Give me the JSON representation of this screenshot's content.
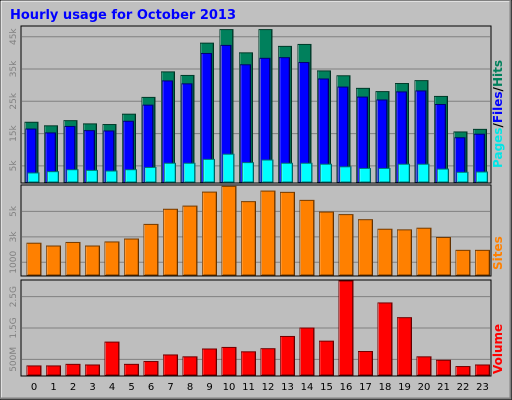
{
  "title": "Hourly usage for October 2013",
  "colors": {
    "background": "#c0c0c0",
    "panel": "#bebebe",
    "title": "#0000ff",
    "hits": "#00805c",
    "files": "#0000ff",
    "pages": "#00ffff",
    "sites": "#ff8000",
    "volume": "#ff0000",
    "axis_text": "#808080"
  },
  "chart_data": [
    {
      "type": "bar",
      "panel": "hits-files-pages",
      "categories": [
        "0",
        "1",
        "2",
        "3",
        "4",
        "5",
        "6",
        "7",
        "8",
        "9",
        "10",
        "11",
        "12",
        "13",
        "14",
        "15",
        "16",
        "17",
        "18",
        "19",
        "20",
        "21",
        "22",
        "23"
      ],
      "series": [
        {
          "name": "Hits",
          "values": [
            18500,
            17400,
            19000,
            18000,
            17800,
            21000,
            26200,
            34100,
            33000,
            43000,
            47200,
            40000,
            47200,
            42000,
            42600,
            34400,
            32900,
            29000,
            28000,
            30500,
            31400,
            26500,
            15500,
            16300
          ]
        },
        {
          "name": "Files",
          "values": [
            16400,
            15200,
            17200,
            15900,
            15800,
            18800,
            23800,
            31300,
            30400,
            39800,
            42300,
            36300,
            38300,
            38500,
            37000,
            31900,
            29400,
            26300,
            25400,
            27900,
            28200,
            24000,
            13700,
            14800
          ]
        },
        {
          "name": "Pages",
          "values": [
            2800,
            3200,
            3800,
            3600,
            3400,
            3800,
            4500,
            5800,
            5800,
            7000,
            8600,
            6000,
            6800,
            5800,
            5800,
            5500,
            4700,
            4200,
            4200,
            5500,
            5500,
            4000,
            3000,
            3100
          ]
        }
      ],
      "ylabel": "Pages / Files / Hits",
      "ylabel_parts": [
        "Pages",
        "/",
        "Files",
        "/",
        "Hits"
      ],
      "ticks": [
        {
          "label": "5k",
          "value": 5000
        },
        {
          "label": "15k",
          "value": 15000
        },
        {
          "label": "25k",
          "value": 25000
        },
        {
          "label": "35k",
          "value": 35000
        },
        {
          "label": "45k",
          "value": 45000
        }
      ],
      "ylim": [
        0,
        48000
      ]
    },
    {
      "type": "bar",
      "panel": "sites",
      "categories": [
        "0",
        "1",
        "2",
        "3",
        "4",
        "5",
        "6",
        "7",
        "8",
        "9",
        "10",
        "11",
        "12",
        "13",
        "14",
        "15",
        "16",
        "17",
        "18",
        "19",
        "20",
        "21",
        "22",
        "23"
      ],
      "series": [
        {
          "name": "Sites",
          "values": [
            2500,
            2280,
            2560,
            2280,
            2600,
            2830,
            3980,
            5170,
            5420,
            6520,
            6970,
            5770,
            6600,
            6500,
            5870,
            4950,
            4750,
            4350,
            3600,
            3550,
            3680,
            2950,
            1940,
            1940
          ]
        }
      ],
      "ylabel": "Sites",
      "ticks": [
        {
          "label": "1000",
          "value": 1000
        },
        {
          "label": "3k",
          "value": 3000
        },
        {
          "label": "5k",
          "value": 5000
        }
      ],
      "ylim": [
        0,
        7000
      ]
    },
    {
      "type": "bar",
      "panel": "volume",
      "categories": [
        "0",
        "1",
        "2",
        "3",
        "4",
        "5",
        "6",
        "7",
        "8",
        "9",
        "10",
        "11",
        "12",
        "13",
        "14",
        "15",
        "16",
        "17",
        "18",
        "19",
        "20",
        "21",
        "22",
        "23"
      ],
      "series": [
        {
          "name": "Volume",
          "values": [
            290,
            290,
            340,
            320,
            1050,
            340,
            430,
            640,
            580,
            830,
            880,
            740,
            840,
            1230,
            1500,
            1080,
            3000,
            750,
            2300,
            1830,
            580,
            470,
            270,
            320
          ]
        }
      ],
      "ylabel": "Volume",
      "ticks": [
        {
          "label": "500M",
          "value": 500
        },
        {
          "label": "1.5G",
          "value": 1500
        },
        {
          "label": "2.5G",
          "value": 2500
        }
      ],
      "ylim": [
        0,
        3000
      ]
    }
  ]
}
